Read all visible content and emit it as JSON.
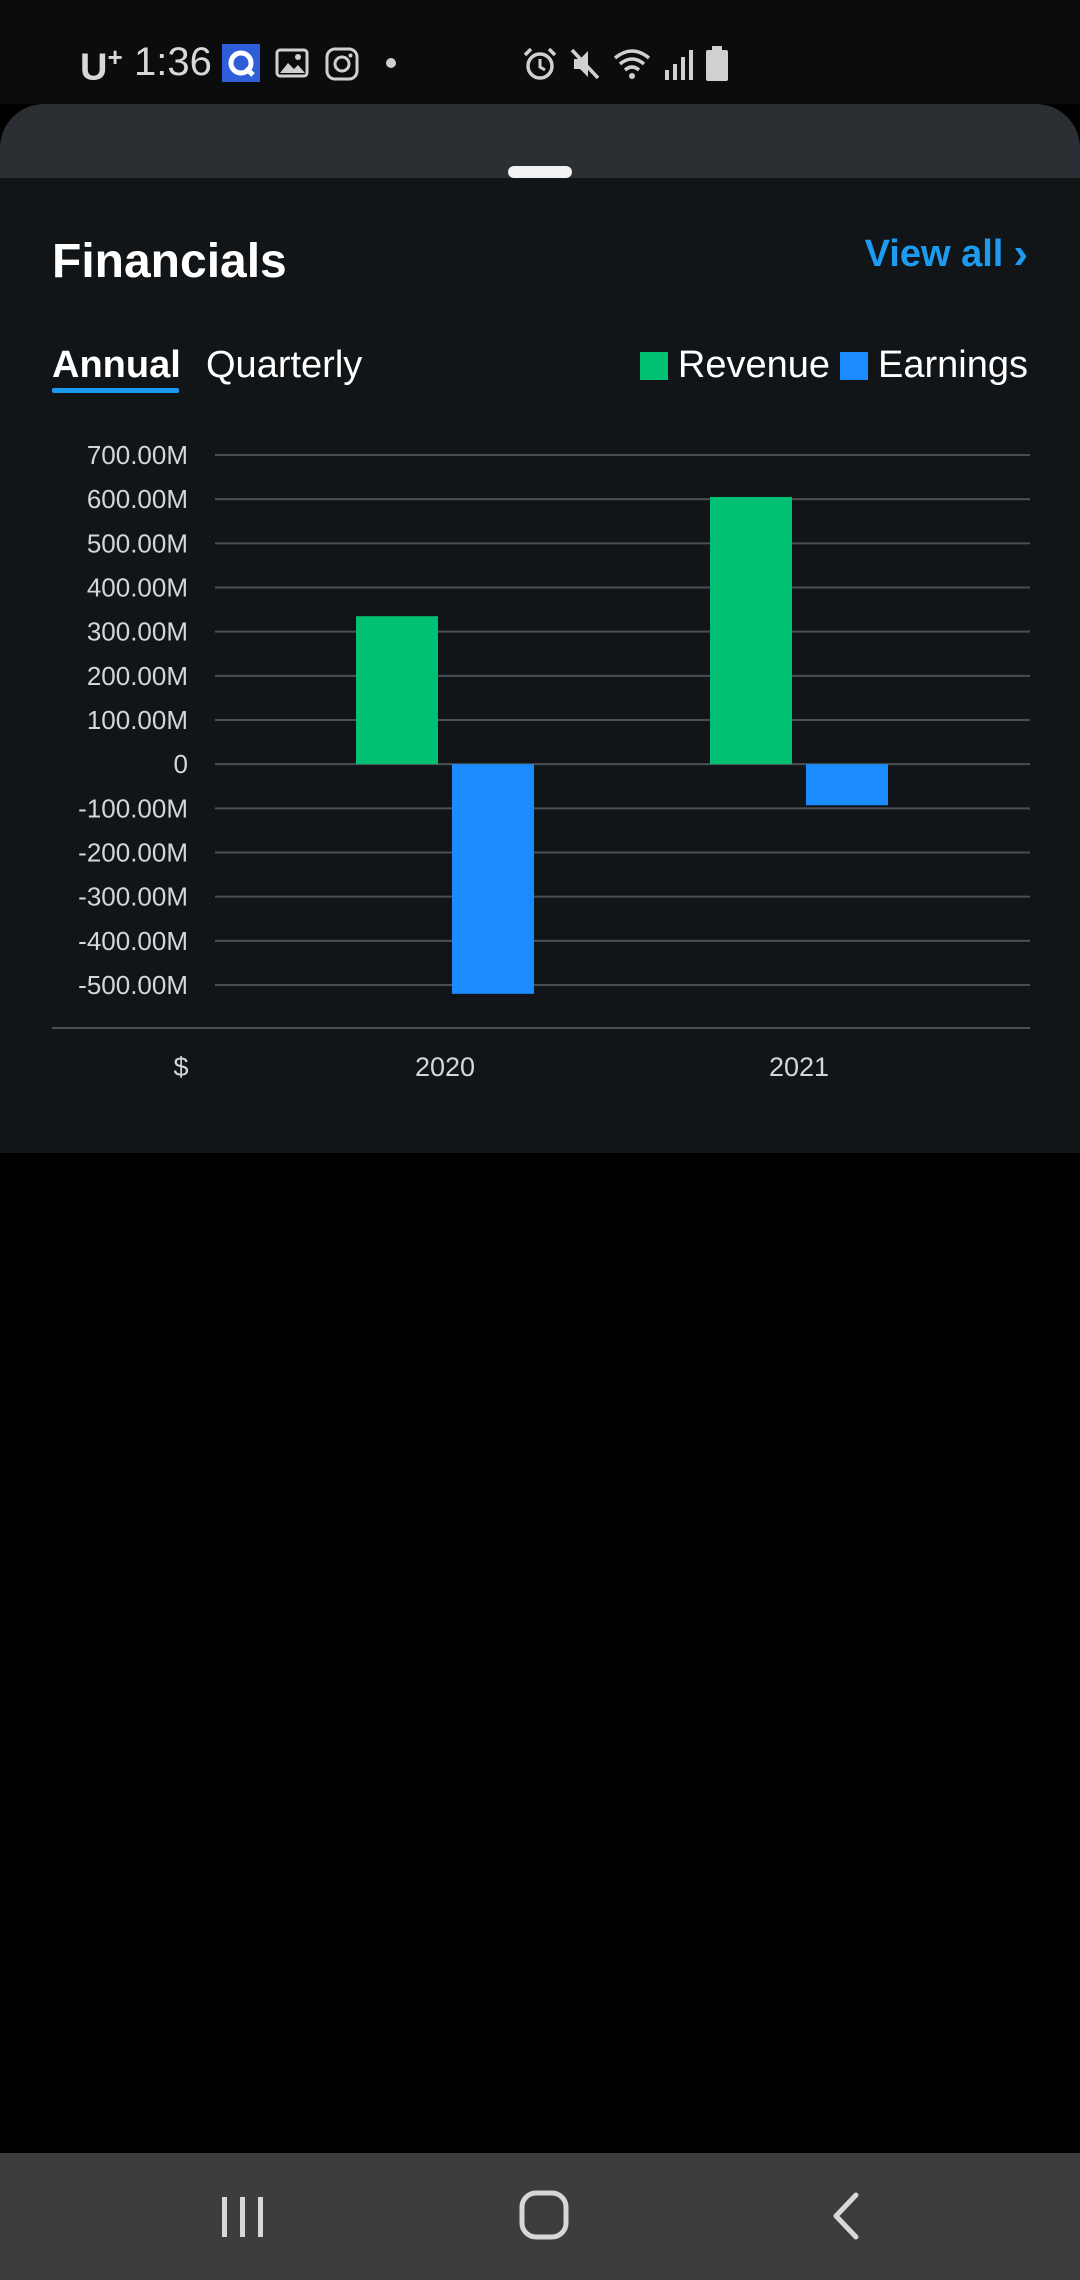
{
  "status_bar": {
    "carrier": "U",
    "carrier_sup": "+",
    "time": "1:36",
    "left_icons": [
      "app-icon",
      "gallery-icon",
      "instagram-icon",
      "dot-icon"
    ],
    "right_icons": [
      "alarm-icon",
      "mute-icon",
      "wifi-icon",
      "signal-icon",
      "battery-icon"
    ]
  },
  "card": {
    "title": "Financials",
    "view_all": "View all",
    "view_all_chevron": "›",
    "tabs": [
      {
        "label": "Annual",
        "active": true
      },
      {
        "label": "Quarterly",
        "active": false
      }
    ],
    "legend": [
      {
        "label": "Revenue",
        "color": "#00c073"
      },
      {
        "label": "Earnings",
        "color": "#1a8cff"
      }
    ]
  },
  "chart_data": {
    "type": "bar",
    "categories": [
      "2020",
      "2021"
    ],
    "series": [
      {
        "name": "Revenue",
        "color": "#00c073",
        "values": [
          335000000,
          605000000
        ]
      },
      {
        "name": "Earnings",
        "color": "#1a8cff",
        "values": [
          -520000000,
          -93000000
        ]
      }
    ],
    "ytick_labels": [
      "700.00M",
      "600.00M",
      "500.00M",
      "400.00M",
      "300.00M",
      "200.00M",
      "100.00M",
      "0",
      "-100.00M",
      "-200.00M",
      "-300.00M",
      "-400.00M",
      "-500.00M"
    ],
    "ytick_values": [
      700000000,
      600000000,
      500000000,
      400000000,
      300000000,
      200000000,
      100000000,
      0,
      -100000000,
      -200000000,
      -300000000,
      -400000000,
      -500000000
    ],
    "ylim": [
      -600000000,
      700000000
    ],
    "xlabel": "$",
    "grid": true,
    "legend_position": "top-right"
  },
  "nav_bar": {
    "buttons": [
      "recents-button",
      "home-button",
      "back-button"
    ]
  }
}
